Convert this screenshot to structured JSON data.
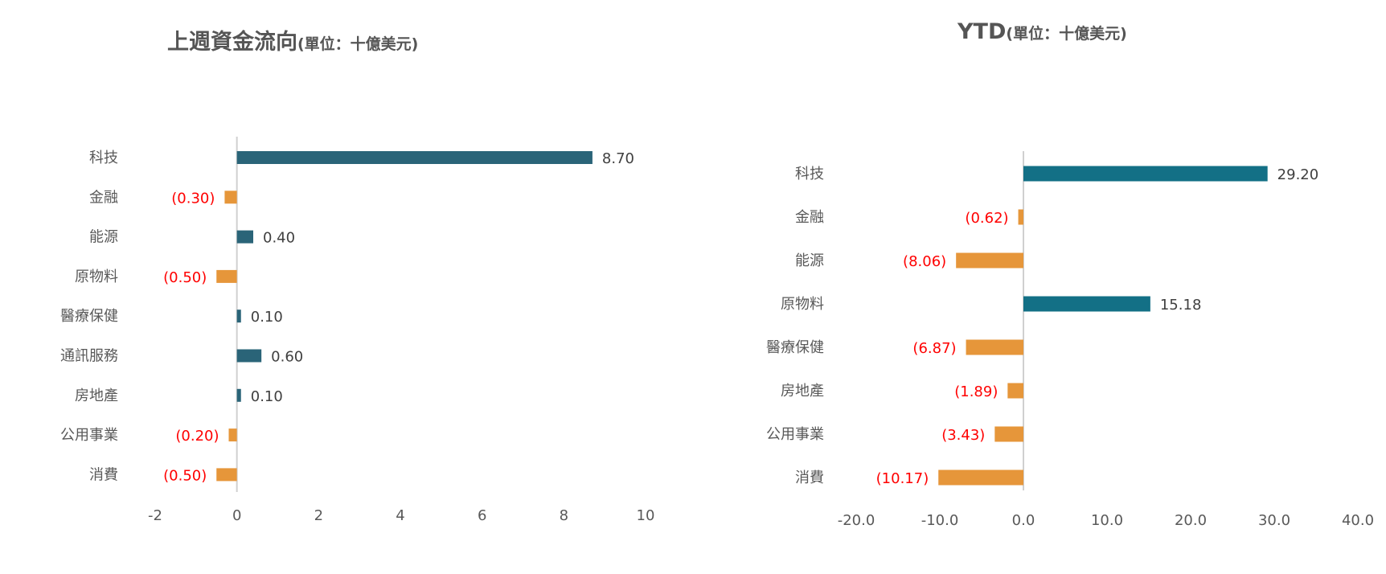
{
  "chart_data": [
    {
      "type": "bar",
      "orientation": "horizontal",
      "title": "上週資金流向",
      "unit": "(單位：十億美元)",
      "categories": [
        "科技",
        "金融",
        "能源",
        "原物料",
        "醫療保健",
        "通訊服務",
        "房地產",
        "公用事業",
        "消費"
      ],
      "values": [
        8.7,
        -0.3,
        0.4,
        -0.5,
        0.1,
        0.6,
        0.1,
        -0.2,
        -0.5
      ],
      "labels": [
        "8.70",
        "(0.30)",
        "0.40",
        "(0.50)",
        "0.10",
        "0.60",
        "0.10",
        "(0.20)",
        "(0.50)"
      ],
      "xlim": [
        -2,
        10
      ],
      "ticks": [
        "-2",
        "0",
        "2",
        "4",
        "6",
        "8",
        "10"
      ],
      "tick_values": [
        -2,
        0,
        2,
        4,
        6,
        8,
        10
      ],
      "grid": false,
      "colors": {
        "positive": "#2a6478",
        "negative": "#e6963a",
        "negative_label": "#ff0000",
        "positive_label": "#404040"
      }
    },
    {
      "type": "bar",
      "orientation": "horizontal",
      "title": "YTD",
      "unit": "(單位：十億美元)",
      "categories": [
        "科技",
        "金融",
        "能源",
        "原物料",
        "醫療保健",
        "房地產",
        "公用事業",
        "消費"
      ],
      "values": [
        29.2,
        -0.62,
        -8.06,
        15.18,
        -6.87,
        -1.89,
        -3.43,
        -10.17
      ],
      "labels": [
        "29.20",
        "(0.62)",
        "(8.06)",
        "15.18",
        "(6.87)",
        "(1.89)",
        "(3.43)",
        "(10.17)"
      ],
      "xlim": [
        -20,
        40
      ],
      "ticks": [
        "-20.0",
        "-10.0",
        "0.0",
        "10.0",
        "20.0",
        "30.0",
        "40.0"
      ],
      "tick_values": [
        -20,
        -10,
        0,
        10,
        20,
        30,
        40
      ],
      "grid": false,
      "colors": {
        "positive": "#137086",
        "negative": "#e6963a",
        "negative_label": "#ff0000",
        "positive_label": "#404040"
      }
    }
  ]
}
